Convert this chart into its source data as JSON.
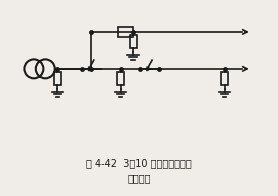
{
  "title_line1": "图 4-42  3～10 千伏配电装置保",
  "title_line2": "护结线图",
  "bg_color": "#f0ede8",
  "line_color": "#1a1a1a",
  "figsize": [
    2.78,
    1.96
  ],
  "dpi": 100
}
